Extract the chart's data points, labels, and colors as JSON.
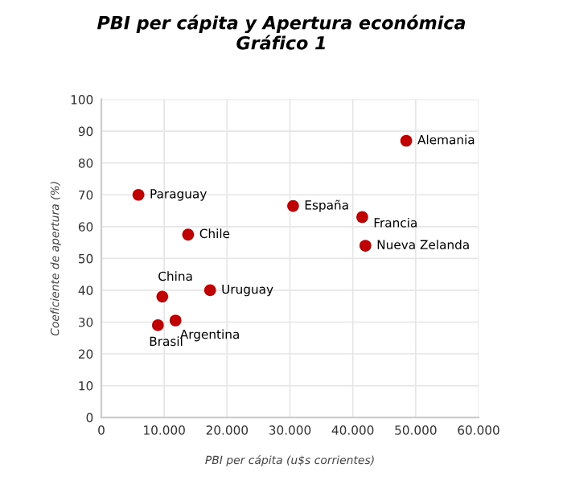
{
  "chart_data": {
    "type": "scatter",
    "title": "PBI per cápita y Apertura económica\nGráfico 1",
    "xlabel": "PBI per cápita (u$s corrientes)",
    "ylabel": "Coeficiente de apertura (%)",
    "x": [
      5900,
      13800,
      30500,
      41500,
      48500,
      42000,
      9700,
      17300,
      11800,
      9000
    ],
    "values": [
      70,
      57.5,
      66.5,
      63,
      87,
      54,
      38,
      40,
      30.5,
      29
    ],
    "color": "#c00000",
    "marker": "circle",
    "annotations": [
      {
        "text": "Paraguay",
        "x": 5900,
        "y": 70
      },
      {
        "text": "Chile",
        "x": 13800,
        "y": 57.5
      },
      {
        "text": "España",
        "x": 30500,
        "y": 66.5
      },
      {
        "text": "Francia",
        "x": 41500,
        "y": 63
      },
      {
        "text": "Alemania",
        "x": 48500,
        "y": 87
      },
      {
        "text": "Nueva Zelanda",
        "x": 42000,
        "y": 54
      },
      {
        "text": "China",
        "x": 9700,
        "y": 38
      },
      {
        "text": "Uruguay",
        "x": 17300,
        "y": 40
      },
      {
        "text": "Argentina",
        "x": 11800,
        "y": 30.5
      },
      {
        "text": "Brasil",
        "x": 9000,
        "y": 29
      }
    ],
    "xlim": [
      0,
      60000
    ],
    "ylim": [
      0,
      100
    ],
    "xticks": [
      0,
      {
        "value": 10000,
        "label": "10.000"
      },
      {
        "value": 20000,
        "label": "20.000"
      },
      {
        "value": 30000,
        "label": "30.000"
      },
      {
        "value": 40000,
        "label": "40.000"
      },
      {
        "value": 50000,
        "label": "50.000"
      },
      {
        "value": 60000,
        "label": "60.000"
      }
    ],
    "yticks": [
      0,
      10,
      20,
      30,
      40,
      50,
      60,
      70,
      80,
      90,
      100
    ],
    "grid": true
  }
}
